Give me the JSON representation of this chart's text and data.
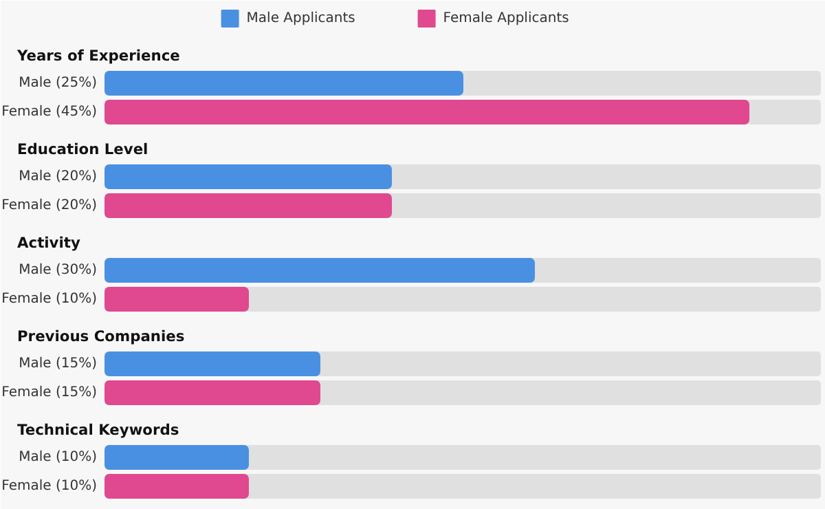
{
  "chart_data": {
    "type": "bar",
    "orientation": "horizontal",
    "categories": [
      "Years of Experience",
      "Education Level",
      "Activity",
      "Previous Companies",
      "Technical Keywords"
    ],
    "series": [
      {
        "name": "Male Applicants",
        "color": "#4a90e2",
        "values": [
          25,
          20,
          30,
          15,
          10
        ],
        "value_labels": [
          "Male (25%)",
          "Male (20%)",
          "Male (30%)",
          "Male (15%)",
          "Male (10%)"
        ]
      },
      {
        "name": "Female Applicants",
        "color": "#e0488f",
        "values": [
          45,
          20,
          10,
          15,
          10
        ],
        "value_labels": [
          "Female (45%)",
          "Female (20%)",
          "Female (10%)",
          "Female (15%)",
          "Female (10%)"
        ]
      }
    ],
    "xlim": [
      0,
      50
    ],
    "legend": "top",
    "grid": false
  }
}
